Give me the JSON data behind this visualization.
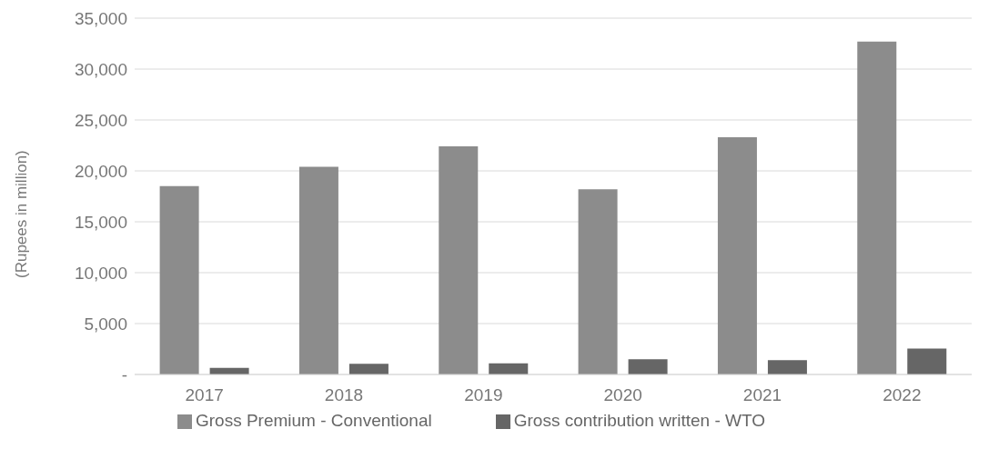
{
  "chart_data": {
    "type": "bar",
    "ylabel": "(Rupees in million)",
    "categories": [
      "2017",
      "2018",
      "2019",
      "2020",
      "2021",
      "2022"
    ],
    "series": [
      {
        "name": "Gross Premium - Conventional",
        "color": "#8c8c8c",
        "values": [
          18500,
          20400,
          22400,
          18200,
          23300,
          32700
        ]
      },
      {
        "name": "Gross contribution written - WTO",
        "color": "#666666",
        "values": [
          650,
          1050,
          1100,
          1500,
          1400,
          2550
        ]
      }
    ],
    "ylim": [
      0,
      35000
    ],
    "yticks": [
      {
        "value": 0,
        "label": "-"
      },
      {
        "value": 5000,
        "label": "5,000"
      },
      {
        "value": 10000,
        "label": "10,000"
      },
      {
        "value": 15000,
        "label": "15,000"
      },
      {
        "value": 20000,
        "label": "20,000"
      },
      {
        "value": 25000,
        "label": "25,000"
      },
      {
        "value": 30000,
        "label": "30,000"
      },
      {
        "value": 35000,
        "label": "35,000"
      }
    ],
    "grid": "y",
    "legend": "bottom"
  }
}
